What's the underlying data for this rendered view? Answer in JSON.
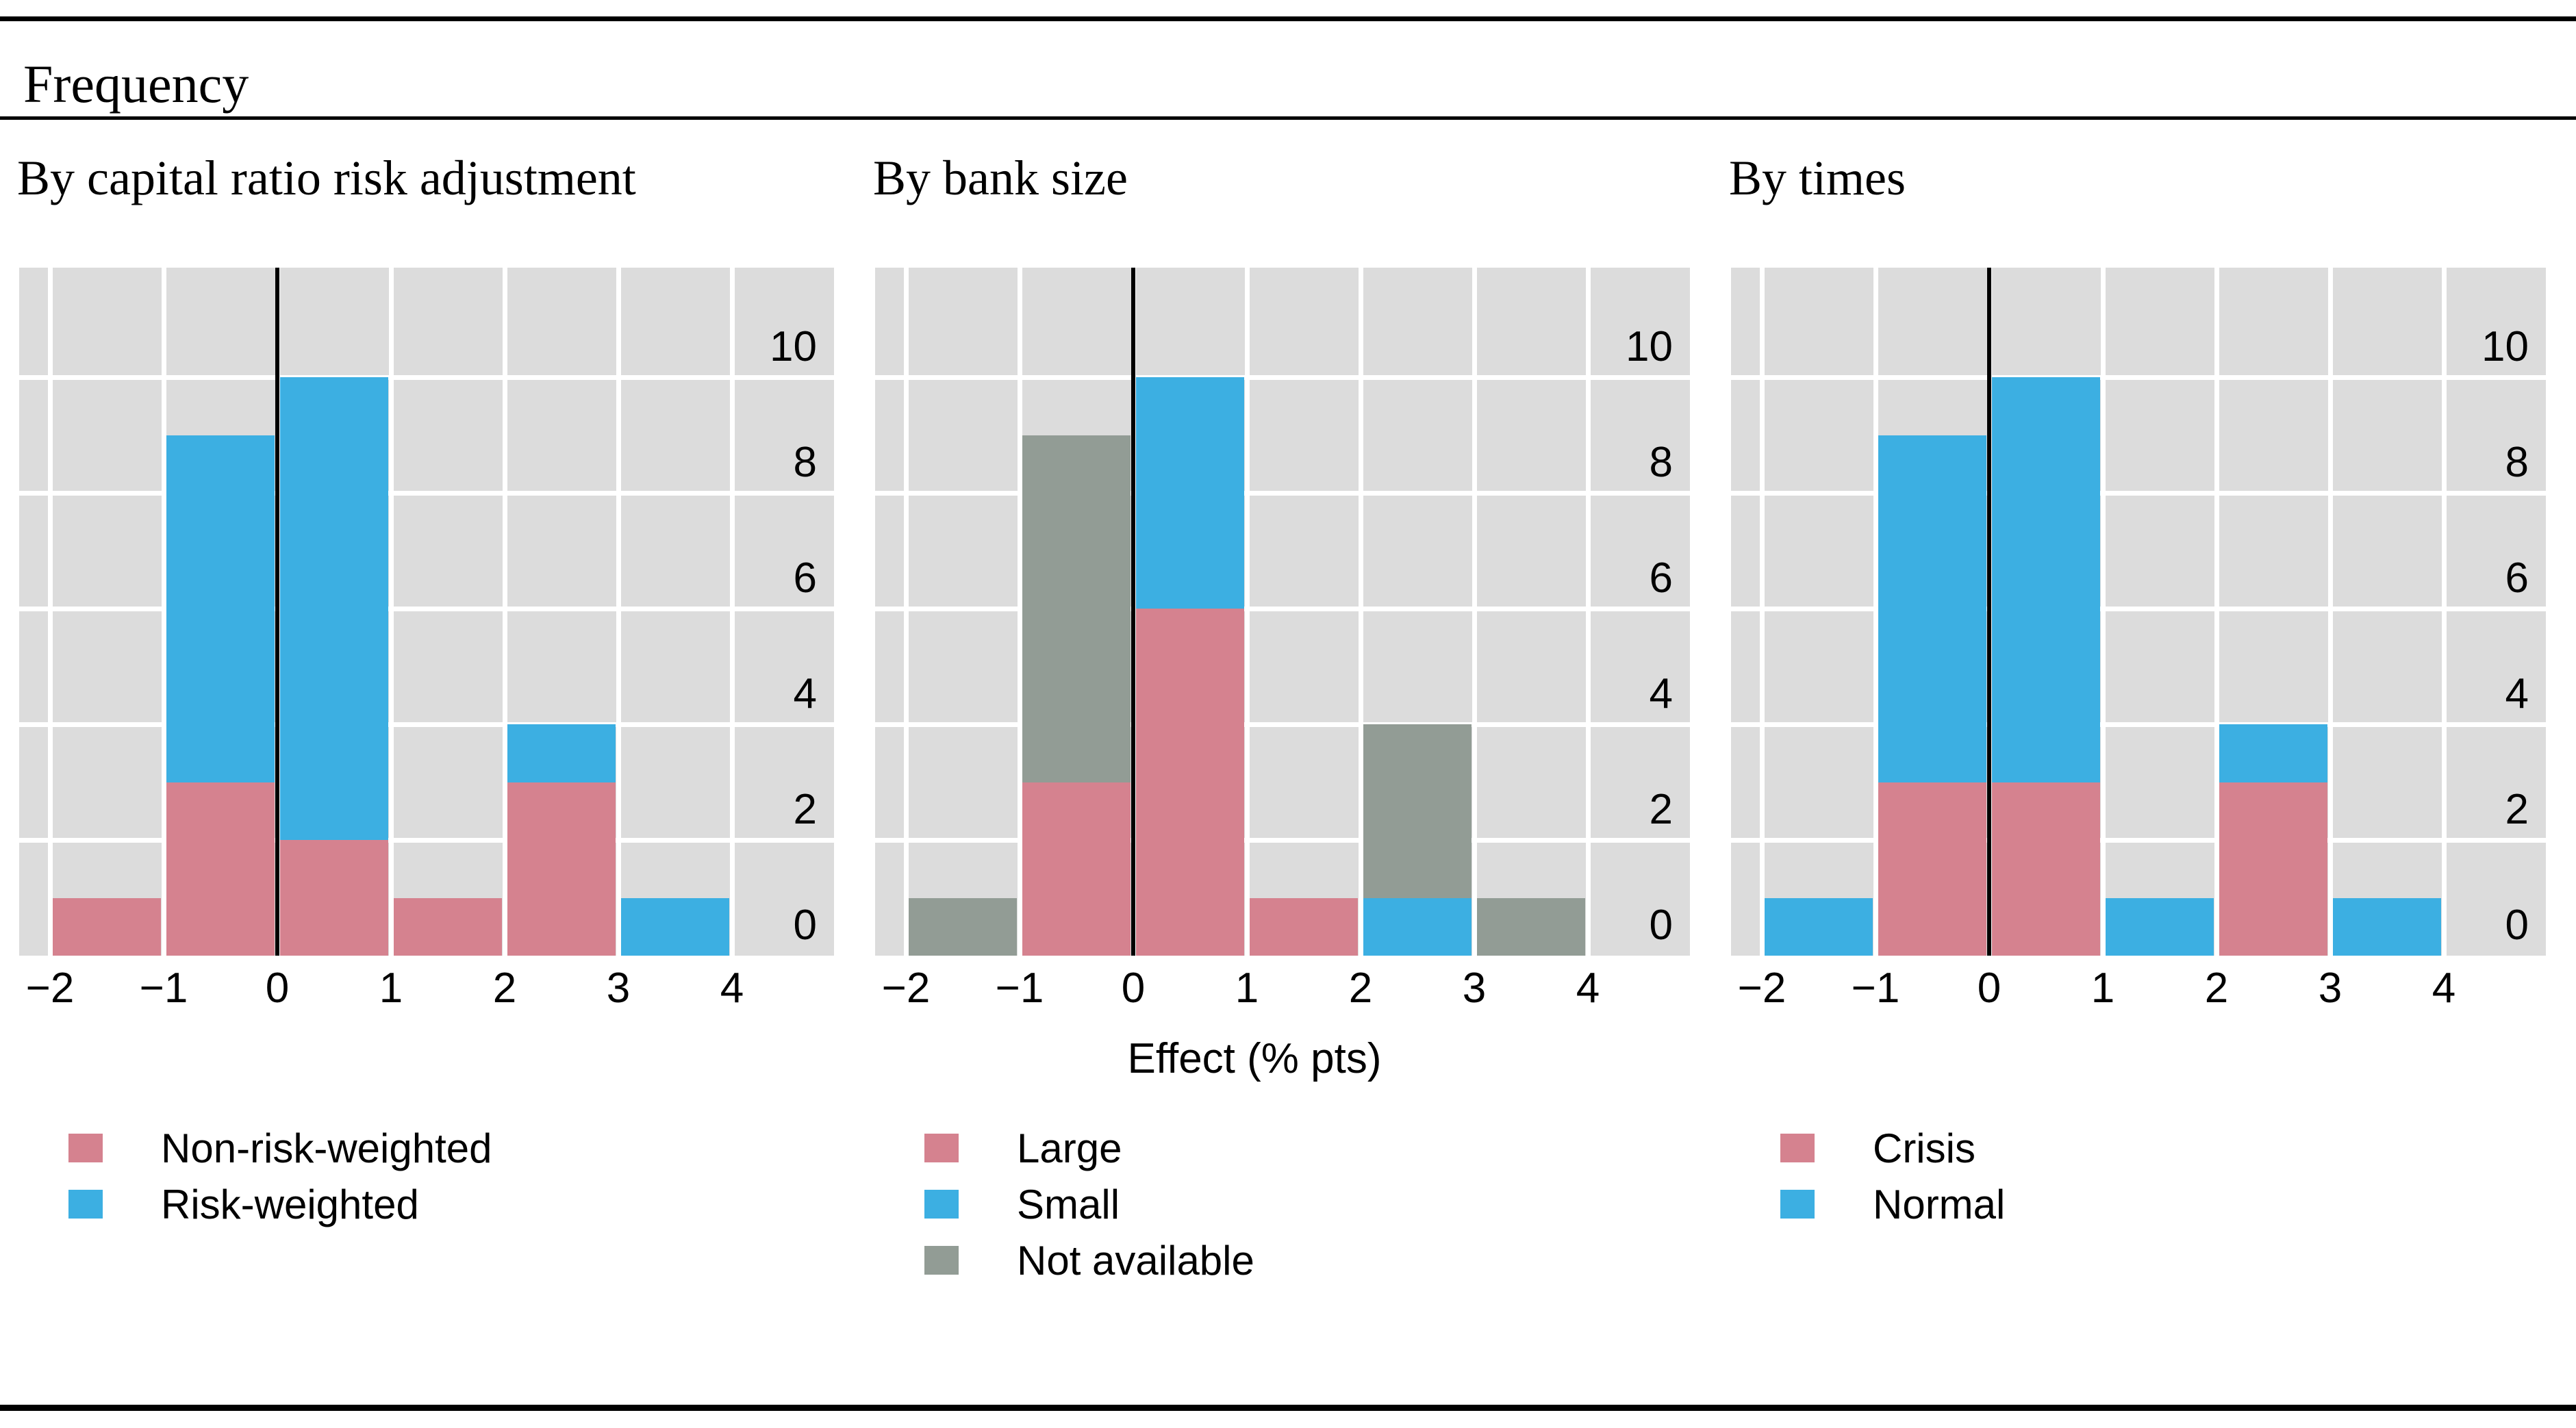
{
  "page": {
    "title": "Frequency"
  },
  "axis": {
    "xlabel": "Effect (% pts)",
    "x_tick_labels": [
      "−2",
      "−1",
      "0",
      "1",
      "2",
      "3",
      "4"
    ],
    "y_tick_labels": [
      "0",
      "2",
      "4",
      "6",
      "8",
      "10"
    ]
  },
  "colors": {
    "pink": "#d5828f",
    "blue": "#3cafe2",
    "gray": "#929c95",
    "plot_bg": "#dcdcdc",
    "gridline": "#ffffff",
    "zero_line": "#000000",
    "rule": "#000000",
    "text": "#000000"
  },
  "chart_data": {
    "type": "bar",
    "subtype": "stacked-histogram-small-multiples",
    "title": "Frequency",
    "xlabel": "Effect (% pts)",
    "bin_edges": [
      -2,
      -1,
      0,
      1,
      2,
      3,
      4
    ],
    "x_ticks": [
      -2,
      -1,
      0,
      1,
      2,
      3,
      4
    ],
    "y_ticks": [
      0,
      2,
      4,
      6,
      8,
      10
    ],
    "ylim": [
      0,
      11.9
    ],
    "xlim": [
      -2.27,
      4.9
    ],
    "grid": true,
    "legend_position": "below-left",
    "panels": [
      {
        "title": "By capital ratio risk adjustment",
        "series": [
          {
            "name": "Non-risk-weighted",
            "color_key": "pink",
            "values": [
              1,
              3,
              2,
              1,
              3,
              0
            ]
          },
          {
            "name": "Risk-weighted",
            "color_key": "blue",
            "values": [
              0,
              6,
              8,
              0,
              1,
              1
            ]
          }
        ]
      },
      {
        "title": "By bank size",
        "series": [
          {
            "name": "Large",
            "color_key": "pink",
            "values": [
              0,
              3,
              6,
              1,
              0,
              0
            ]
          },
          {
            "name": "Small",
            "color_key": "blue",
            "values": [
              0,
              0,
              4,
              0,
              1,
              0
            ]
          },
          {
            "name": "Not available",
            "color_key": "gray",
            "values": [
              1,
              6,
              0,
              0,
              3,
              1
            ]
          }
        ]
      },
      {
        "title": "By times",
        "series": [
          {
            "name": "Crisis",
            "color_key": "pink",
            "values": [
              0,
              3,
              3,
              0,
              3,
              0
            ]
          },
          {
            "name": "Normal",
            "color_key": "blue",
            "values": [
              1,
              6,
              7,
              1,
              1,
              1
            ]
          }
        ]
      }
    ]
  }
}
